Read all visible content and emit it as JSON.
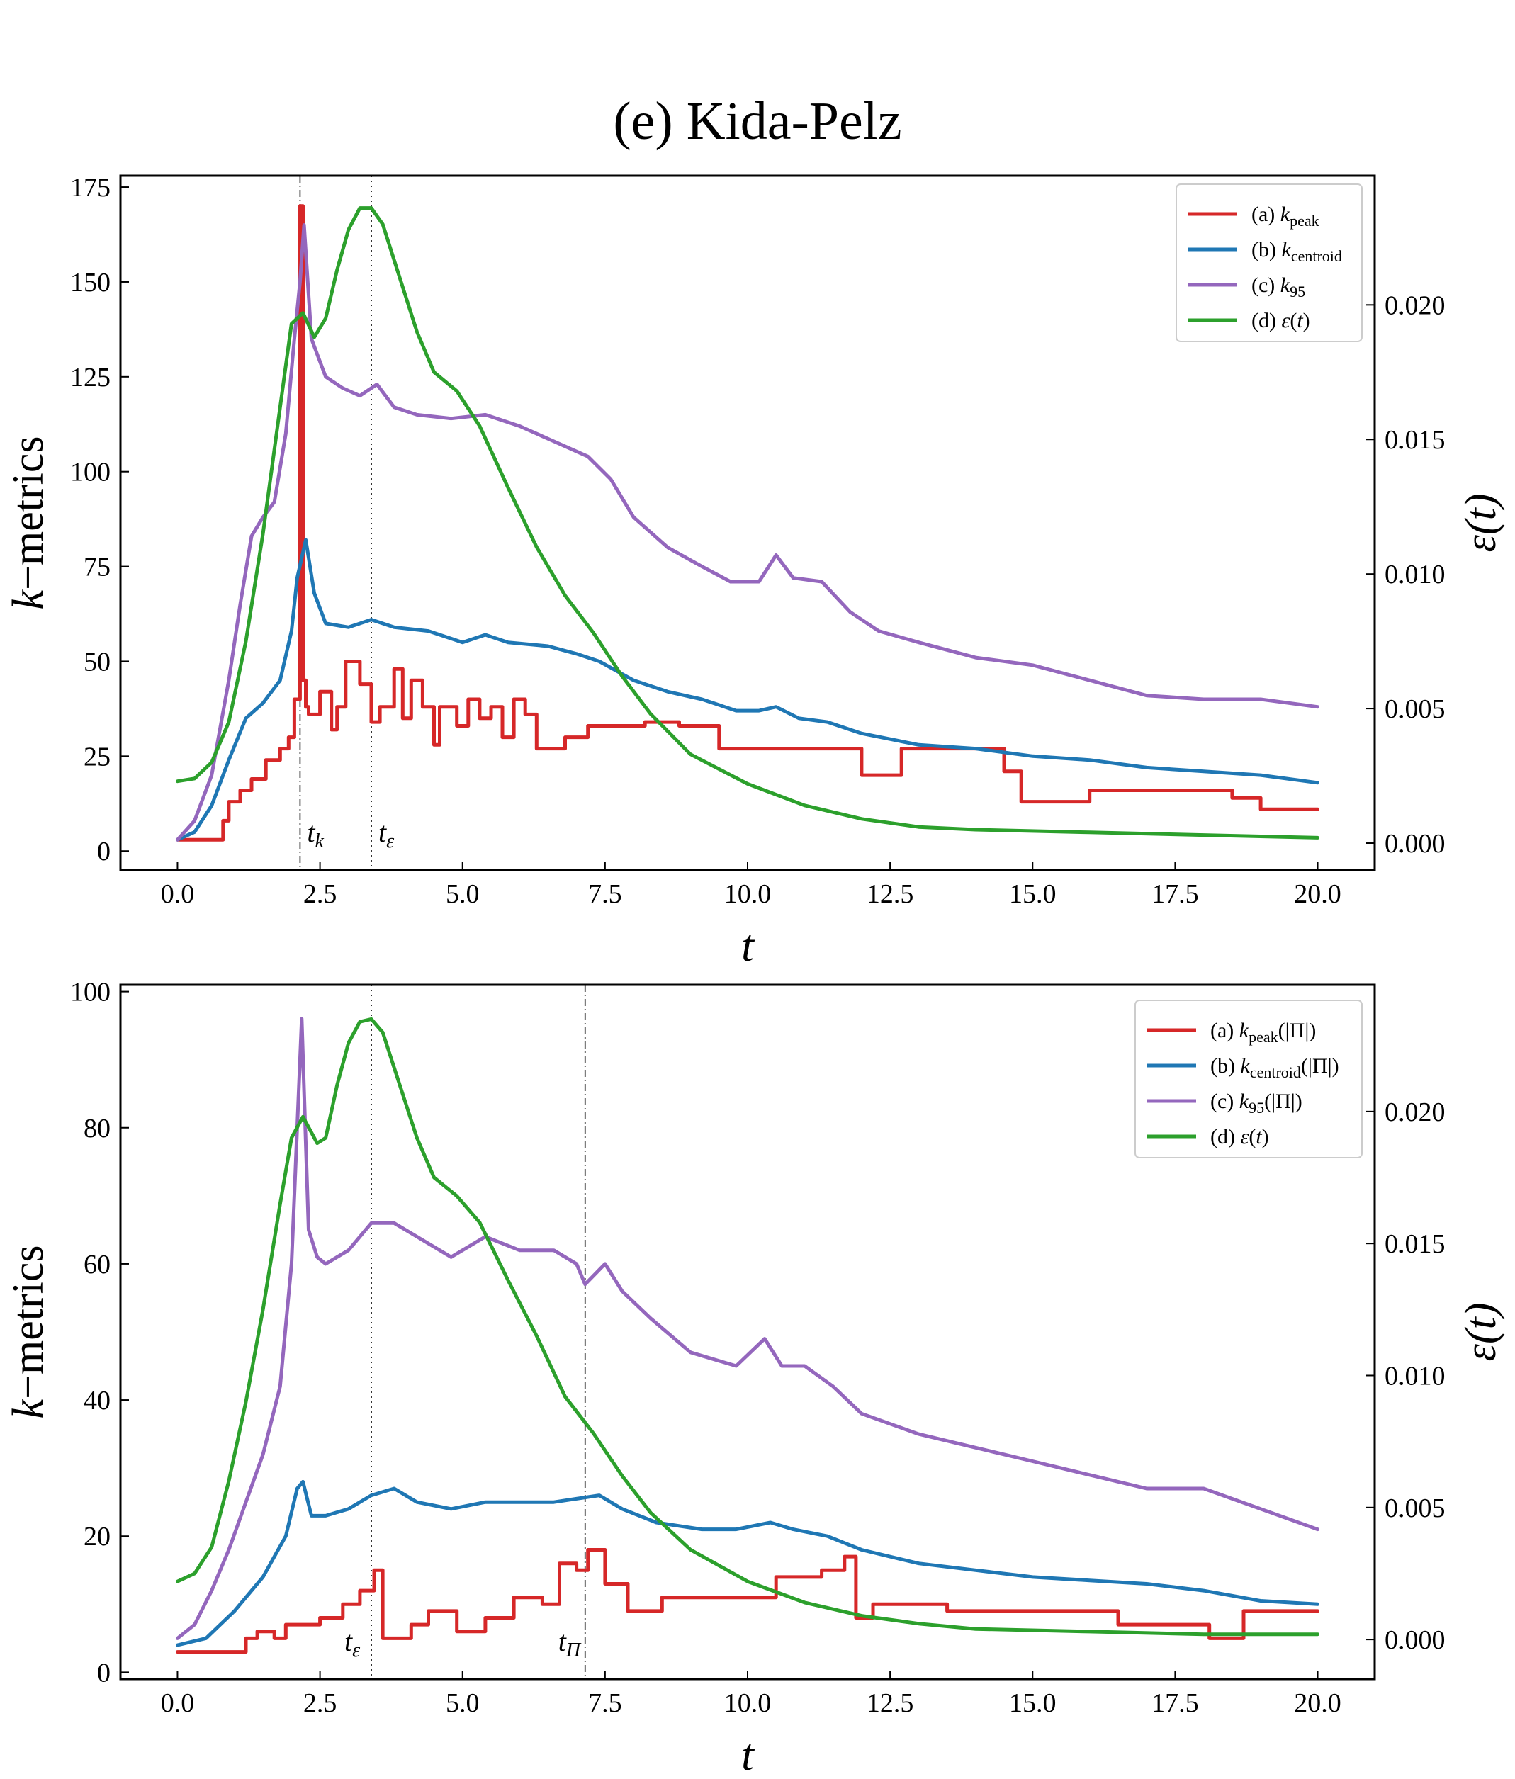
{
  "figure_title": "(e) Kida-Pelz",
  "colors": {
    "peak": "#d62728",
    "centroid": "#1f77b4",
    "k95": "#9467bd",
    "eps": "#2ca02c"
  },
  "chart_data": [
    {
      "type": "line",
      "xlabel": "t",
      "ylabel": "k−metrics",
      "y2label": "ε(t)",
      "xlim": [
        -1,
        21
      ],
      "ylim": [
        -5,
        178
      ],
      "y2lim": [
        -0.001,
        0.0248
      ],
      "xticks": [
        "0.0",
        "2.5",
        "5.0",
        "7.5",
        "10.0",
        "12.5",
        "15.0",
        "17.5",
        "20.0"
      ],
      "yticks": [
        "0",
        "25",
        "50",
        "75",
        "100",
        "125",
        "150",
        "175"
      ],
      "y2ticks": [
        "0.000",
        "0.005",
        "0.010",
        "0.015",
        "0.020"
      ],
      "legend_position": "upper right",
      "grid": false,
      "vlines": [
        {
          "x": 2.15,
          "label": "t_k",
          "style": "dashdot"
        },
        {
          "x": 3.4,
          "label": "t_ε",
          "style": "dotted"
        }
      ],
      "series": [
        {
          "name": "(a) k_peak",
          "axis": "left",
          "color_key": "peak",
          "step": true,
          "x": [
            0.0,
            0.8,
            0.9,
            1.1,
            1.3,
            1.55,
            1.8,
            1.95,
            2.05,
            2.15,
            2.2,
            2.25,
            2.3,
            2.5,
            2.7,
            2.8,
            2.95,
            3.2,
            3.4,
            3.55,
            3.8,
            3.95,
            4.1,
            4.3,
            4.5,
            4.6,
            4.9,
            5.1,
            5.3,
            5.5,
            5.7,
            5.9,
            6.1,
            6.3,
            6.8,
            7.2,
            7.5,
            8.2,
            8.8,
            9.5,
            9.6,
            10.5,
            12.0,
            12.3,
            12.7,
            14.5,
            14.8,
            16.0,
            17.5,
            18.5,
            19.0,
            20.0
          ],
          "y": [
            3,
            8,
            13,
            16,
            19,
            24,
            27,
            30,
            40,
            170,
            45,
            38,
            36,
            42,
            32,
            38,
            50,
            44,
            34,
            38,
            48,
            35,
            45,
            38,
            28,
            38,
            33,
            40,
            35,
            38,
            30,
            40,
            36,
            27,
            30,
            33,
            33,
            34,
            33,
            27,
            27,
            27,
            20,
            20,
            27,
            21,
            13,
            16,
            16,
            14,
            11,
            11
          ]
        },
        {
          "name": "(b) k_centroid",
          "axis": "left",
          "color_key": "centroid",
          "x": [
            0.0,
            0.3,
            0.6,
            0.9,
            1.2,
            1.5,
            1.8,
            2.0,
            2.1,
            2.25,
            2.4,
            2.6,
            3.0,
            3.4,
            3.8,
            4.4,
            5.0,
            5.4,
            5.8,
            6.5,
            7.0,
            7.4,
            8.0,
            8.6,
            9.2,
            9.8,
            10.2,
            10.5,
            10.9,
            11.4,
            12.0,
            13.0,
            14.0,
            15.0,
            16.0,
            17.0,
            18.0,
            19.0,
            20.0
          ],
          "y": [
            3,
            5,
            12,
            24,
            35,
            39,
            45,
            58,
            72,
            82,
            68,
            60,
            59,
            61,
            59,
            58,
            55,
            57,
            55,
            54,
            52,
            50,
            45,
            42,
            40,
            37,
            37,
            38,
            35,
            34,
            31,
            28,
            27,
            25,
            24,
            22,
            21,
            20,
            18
          ]
        },
        {
          "name": "(c) k_95",
          "axis": "left",
          "color_key": "k95",
          "x": [
            0.0,
            0.3,
            0.6,
            0.9,
            1.1,
            1.3,
            1.5,
            1.7,
            1.9,
            2.05,
            2.15,
            2.22,
            2.35,
            2.6,
            2.9,
            3.2,
            3.5,
            3.8,
            4.2,
            4.8,
            5.4,
            6.0,
            6.6,
            7.2,
            7.6,
            8.0,
            8.6,
            9.2,
            9.7,
            10.2,
            10.5,
            10.8,
            11.3,
            11.8,
            12.3,
            13.0,
            14.0,
            15.0,
            16.0,
            17.0,
            18.0,
            19.0,
            20.0
          ],
          "y": [
            3,
            8,
            20,
            45,
            65,
            83,
            88,
            92,
            110,
            135,
            150,
            165,
            135,
            125,
            122,
            120,
            123,
            117,
            115,
            114,
            115,
            112,
            108,
            104,
            98,
            88,
            80,
            75,
            71,
            71,
            78,
            72,
            71,
            63,
            58,
            55,
            51,
            49,
            45,
            41,
            40,
            40,
            38
          ]
        },
        {
          "name": "(d) ε(t)",
          "axis": "right",
          "color_key": "eps",
          "x": [
            0.0,
            0.3,
            0.6,
            0.9,
            1.2,
            1.5,
            1.8,
            2.0,
            2.2,
            2.4,
            2.6,
            2.8,
            3.0,
            3.2,
            3.4,
            3.6,
            3.9,
            4.2,
            4.5,
            4.9,
            5.3,
            5.8,
            6.3,
            6.8,
            7.3,
            7.8,
            8.3,
            9.0,
            10.0,
            11.0,
            12.0,
            13.0,
            14.0,
            16.0,
            18.0,
            20.0
          ],
          "y": [
            0.0023,
            0.0024,
            0.003,
            0.0045,
            0.0075,
            0.0115,
            0.0162,
            0.0193,
            0.0197,
            0.0188,
            0.0195,
            0.0213,
            0.0228,
            0.0236,
            0.0236,
            0.023,
            0.021,
            0.019,
            0.0175,
            0.0168,
            0.0155,
            0.0132,
            0.011,
            0.0092,
            0.0078,
            0.0062,
            0.0048,
            0.0033,
            0.0022,
            0.0014,
            0.0009,
            0.0006,
            0.0005,
            0.0004,
            0.0003,
            0.0002
          ]
        }
      ]
    },
    {
      "type": "line",
      "xlabel": "t",
      "ylabel": "k−metrics",
      "y2label": "ε(t)",
      "xlim": [
        -1,
        21
      ],
      "ylim": [
        -1,
        101
      ],
      "y2lim": [
        -0.0015,
        0.0248
      ],
      "xticks": [
        "0.0",
        "2.5",
        "5.0",
        "7.5",
        "10.0",
        "12.5",
        "15.0",
        "17.5",
        "20.0"
      ],
      "yticks": [
        "0",
        "20",
        "40",
        "60",
        "80",
        "100"
      ],
      "y2ticks": [
        "0.000",
        "0.005",
        "0.010",
        "0.015",
        "0.020"
      ],
      "legend_position": "upper right",
      "grid": false,
      "vlines": [
        {
          "x": 3.4,
          "label": "t_ε",
          "style": "dotted"
        },
        {
          "x": 7.15,
          "label": "t_Π",
          "style": "dashdot"
        }
      ],
      "series": [
        {
          "name": "(a) k_peak(|Π|)",
          "axis": "left",
          "color_key": "peak",
          "step": true,
          "x": [
            0.0,
            1.2,
            1.4,
            1.7,
            1.9,
            2.5,
            2.9,
            3.2,
            3.45,
            3.6,
            4.1,
            4.4,
            4.9,
            5.4,
            5.9,
            6.4,
            6.7,
            7.0,
            7.2,
            7.5,
            7.9,
            8.5,
            9.5,
            10.0,
            10.5,
            11.0,
            11.3,
            11.7,
            11.9,
            12.2,
            13.5,
            15.5,
            16.5,
            17.5,
            18.1,
            18.7,
            20.0
          ],
          "y": [
            3,
            5,
            6,
            5,
            7,
            8,
            10,
            12,
            15,
            5,
            7,
            9,
            6,
            8,
            11,
            10,
            16,
            15,
            18,
            13,
            9,
            11,
            11,
            11,
            14,
            14,
            15,
            17,
            8,
            10,
            9,
            9,
            7,
            7,
            5,
            9,
            9
          ]
        },
        {
          "name": "(b) k_centroid(|Π|)",
          "axis": "left",
          "color_key": "centroid",
          "x": [
            0.0,
            0.5,
            1.0,
            1.5,
            1.9,
            2.1,
            2.2,
            2.35,
            2.6,
            3.0,
            3.4,
            3.8,
            4.2,
            4.8,
            5.4,
            6.0,
            6.6,
            7.0,
            7.4,
            7.8,
            8.4,
            9.2,
            9.8,
            10.4,
            10.8,
            11.4,
            12.0,
            13.0,
            14.0,
            15.0,
            16.0,
            17.0,
            18.0,
            19.0,
            20.0
          ],
          "y": [
            4,
            5,
            9,
            14,
            20,
            27,
            28,
            23,
            23,
            24,
            26,
            27,
            25,
            24,
            25,
            25,
            25,
            25.5,
            26,
            24,
            22,
            21,
            21,
            22,
            21,
            20,
            18,
            16,
            15,
            14,
            13.5,
            13,
            12,
            10.5,
            10
          ]
        },
        {
          "name": "(c) k_95(|Π|)",
          "axis": "left",
          "color_key": "k95",
          "x": [
            0.0,
            0.3,
            0.6,
            0.9,
            1.2,
            1.5,
            1.8,
            2.0,
            2.1,
            2.18,
            2.3,
            2.45,
            2.6,
            3.0,
            3.4,
            3.8,
            4.2,
            4.8,
            5.4,
            6.0,
            6.6,
            7.0,
            7.15,
            7.5,
            7.8,
            8.3,
            9.0,
            9.8,
            10.3,
            10.6,
            11.0,
            11.5,
            12.0,
            13.0,
            14.0,
            15.0,
            16.0,
            17.0,
            18.0,
            19.0,
            20.0
          ],
          "y": [
            5,
            7,
            12,
            18,
            25,
            32,
            42,
            60,
            80,
            96,
            65,
            61,
            60,
            62,
            66,
            66,
            64,
            61,
            64,
            62,
            62,
            60,
            57,
            60,
            56,
            52,
            47,
            45,
            49,
            45,
            45,
            42,
            38,
            35,
            33,
            31,
            29,
            27,
            27,
            24,
            21
          ]
        },
        {
          "name": "(d) ε(t)",
          "axis": "right",
          "color_key": "eps",
          "x": [
            0.0,
            0.3,
            0.6,
            0.9,
            1.2,
            1.5,
            1.8,
            2.0,
            2.2,
            2.45,
            2.6,
            2.8,
            3.0,
            3.2,
            3.4,
            3.6,
            3.9,
            4.2,
            4.5,
            4.9,
            5.3,
            5.8,
            6.3,
            6.8,
            7.3,
            7.8,
            8.3,
            9.0,
            10.0,
            11.0,
            12.0,
            13.0,
            14.0,
            16.0,
            18.0,
            20.0
          ],
          "y": [
            0.0022,
            0.0025,
            0.0035,
            0.006,
            0.009,
            0.0125,
            0.0165,
            0.019,
            0.0198,
            0.0188,
            0.019,
            0.021,
            0.0226,
            0.0234,
            0.0235,
            0.023,
            0.021,
            0.019,
            0.0175,
            0.0168,
            0.0158,
            0.0136,
            0.0115,
            0.0092,
            0.0078,
            0.0062,
            0.0048,
            0.0034,
            0.0022,
            0.0014,
            0.0009,
            0.0006,
            0.0004,
            0.0003,
            0.0002,
            0.0002
          ]
        }
      ]
    }
  ],
  "legends": [
    {
      "entries": [
        {
          "prefix": "(a) ",
          "base": "k",
          "sub": "peak",
          "suffix": ""
        },
        {
          "prefix": "(b) ",
          "base": "k",
          "sub": "centroid",
          "suffix": ""
        },
        {
          "prefix": "(c) ",
          "base": "k",
          "sub": "95",
          "suffix": ""
        },
        {
          "prefix": "(d) ",
          "base": "ε",
          "sub": "",
          "suffix": "(t)"
        }
      ]
    },
    {
      "entries": [
        {
          "prefix": "(a) ",
          "base": "k",
          "sub": "peak",
          "suffix": "(|Π|)"
        },
        {
          "prefix": "(b) ",
          "base": "k",
          "sub": "centroid",
          "suffix": "(|Π|)"
        },
        {
          "prefix": "(c) ",
          "base": "k",
          "sub": "95",
          "suffix": "(|Π|)"
        },
        {
          "prefix": "(d) ",
          "base": "ε",
          "sub": "",
          "suffix": "(t)"
        }
      ]
    }
  ],
  "annotations": [
    [
      {
        "base": "t",
        "sub": "k"
      },
      {
        "base": "t",
        "sub": "ε"
      }
    ],
    [
      {
        "base": "t",
        "sub": "ε"
      },
      {
        "base": "t",
        "sub": "Π"
      }
    ]
  ]
}
